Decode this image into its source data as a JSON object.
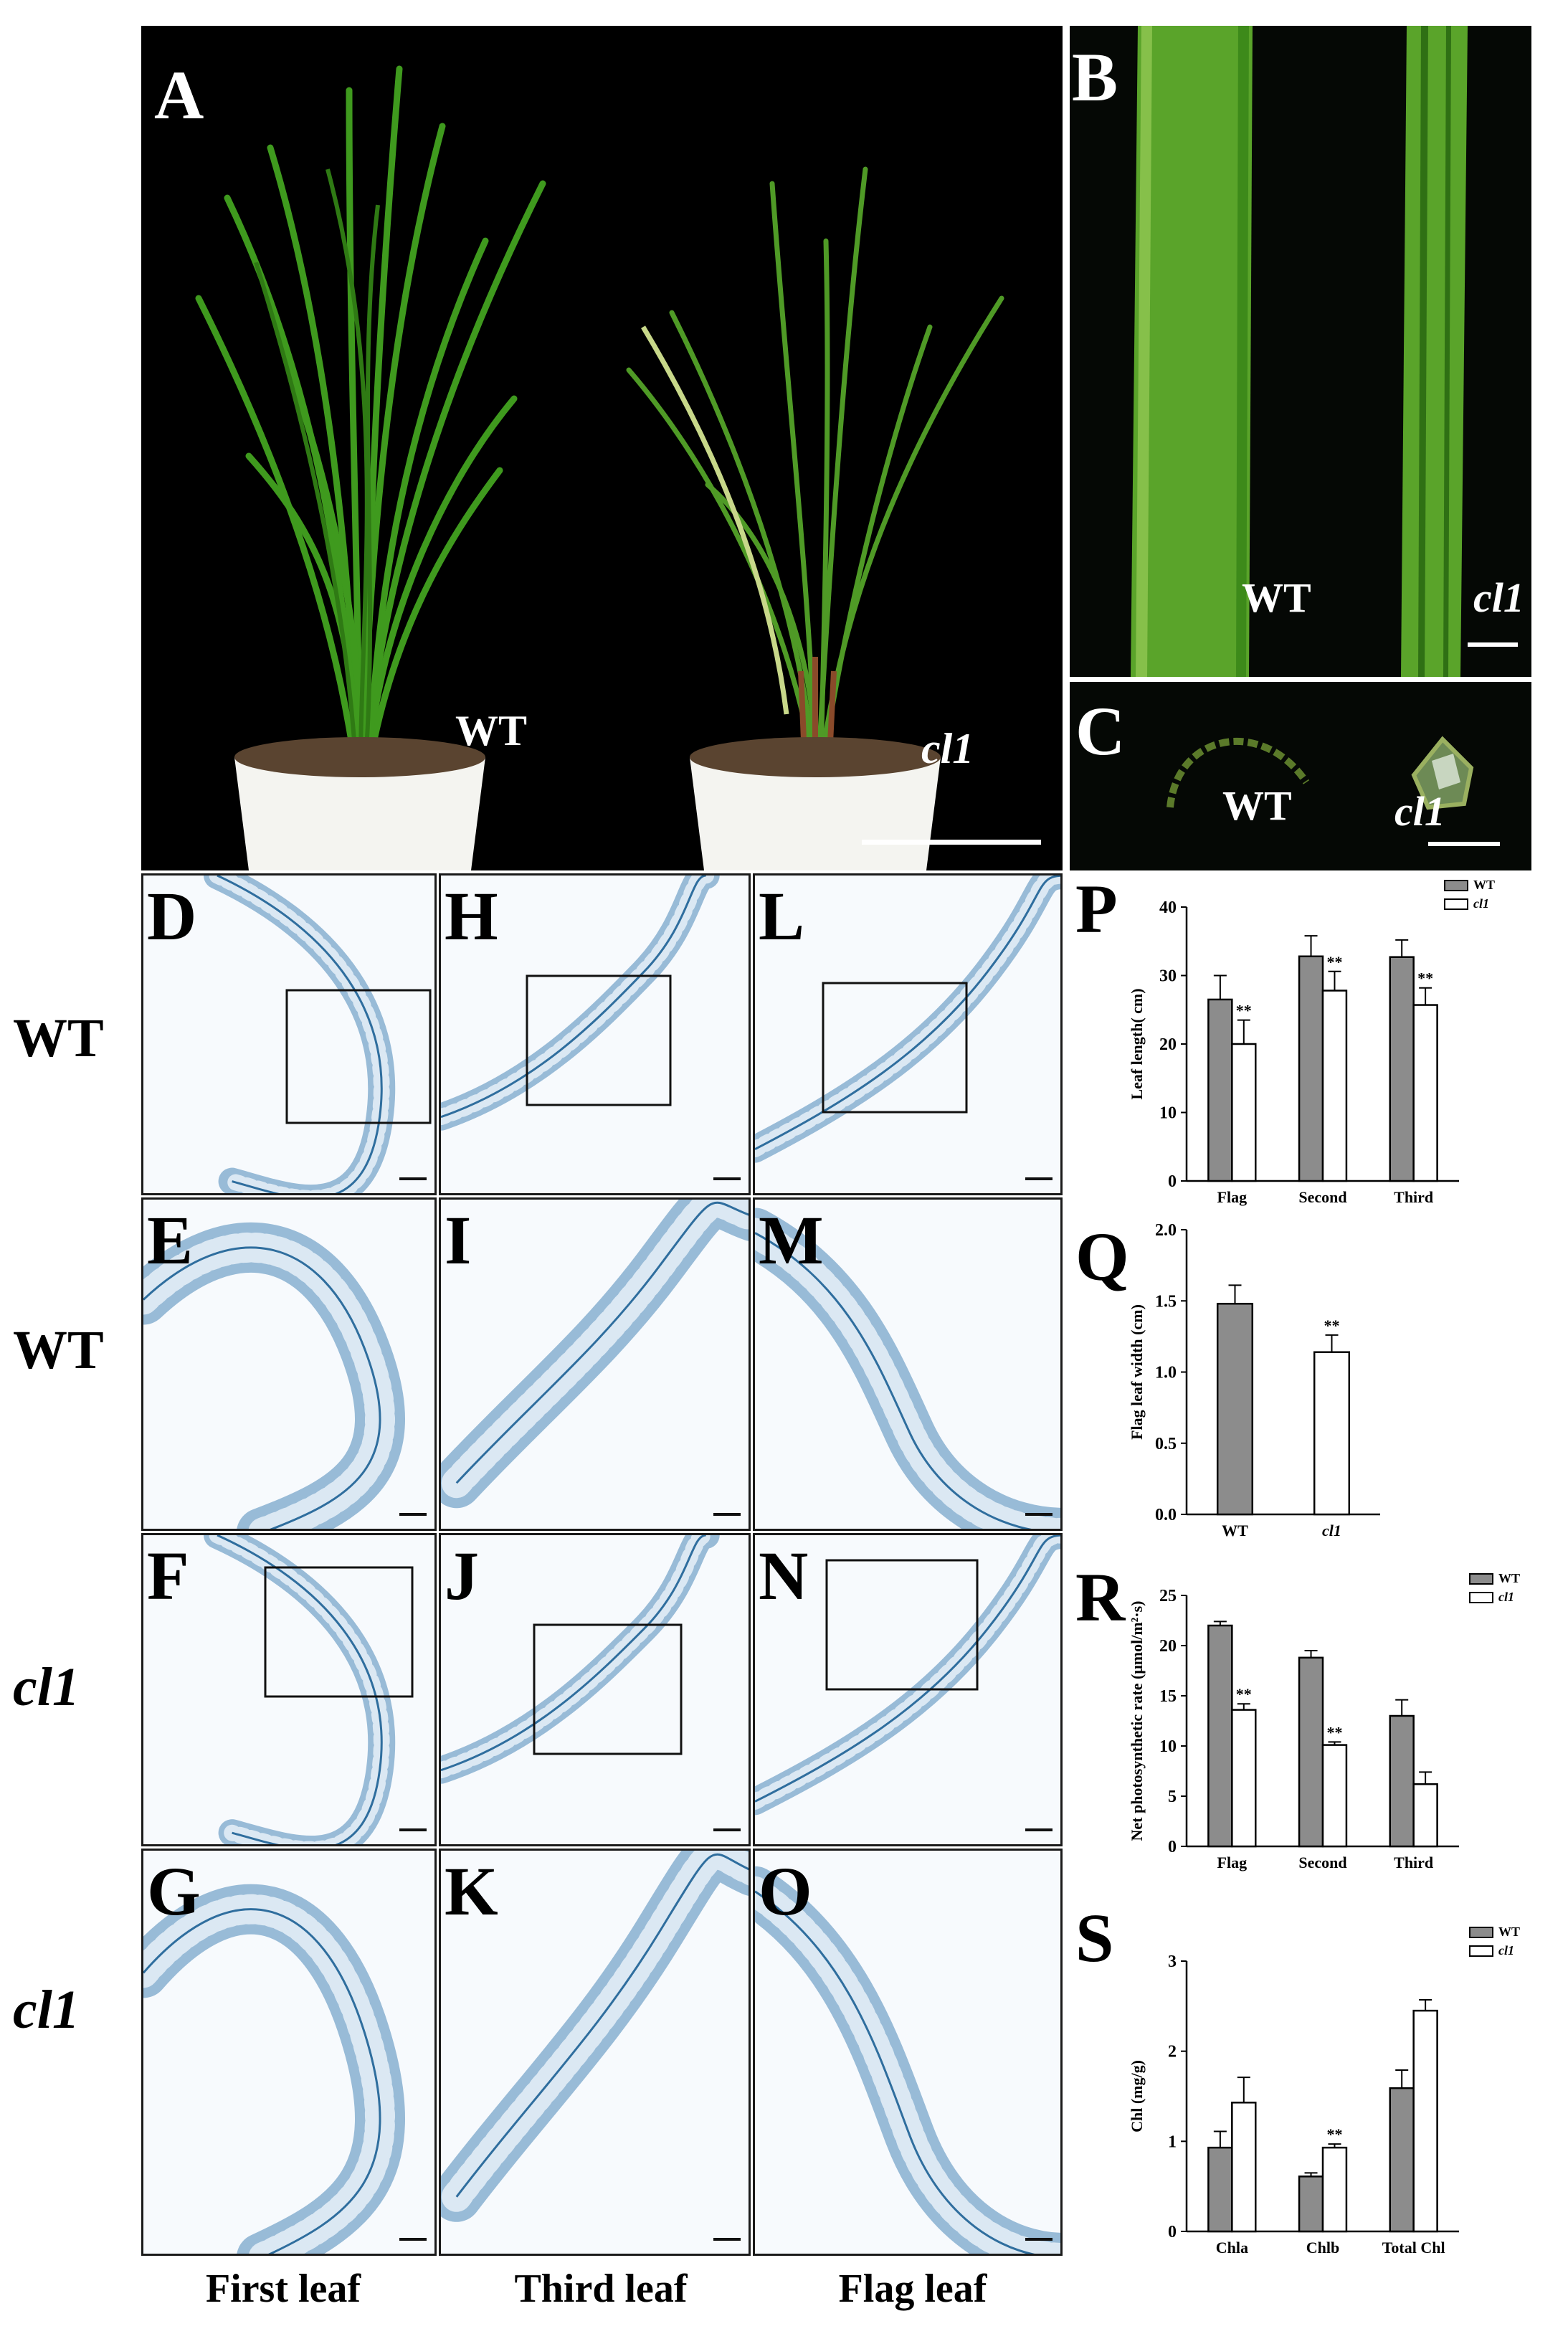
{
  "panels": {
    "A": {
      "letter": "A",
      "wt_label": "WT",
      "mut_label": "cl1"
    },
    "B": {
      "letter": "B",
      "wt_label": "WT",
      "mut_label": "cl1"
    },
    "C": {
      "letter": "C",
      "wt_label": "WT",
      "mut_label": "cl1"
    },
    "micro_letters": [
      "D",
      "E",
      "F",
      "G",
      "H",
      "I",
      "J",
      "K",
      "L",
      "M",
      "N",
      "O"
    ],
    "chart_letters": [
      "P",
      "Q",
      "R",
      "S"
    ]
  },
  "row_labels": [
    "WT",
    "WT",
    "cl1",
    "cl1"
  ],
  "col_labels": [
    "First leaf",
    "Third leaf",
    "Flag leaf"
  ],
  "colors": {
    "wt_bar": "#8c8c8c",
    "mut_bar": "#ffffff",
    "photo_bg": "#000000",
    "leaf_green": "#3f8f1c",
    "stain": "#4a86b8"
  },
  "chart_data": [
    {
      "panel": "P",
      "type": "bar",
      "categories": [
        "Flag",
        "Second",
        "Third"
      ],
      "series": [
        {
          "name": "WT",
          "values": [
            26.5,
            32.8,
            32.7
          ],
          "errors": [
            3.5,
            3.0,
            2.5
          ]
        },
        {
          "name": "cl1",
          "values": [
            20.0,
            27.8,
            25.7
          ],
          "errors": [
            3.5,
            2.8,
            2.5
          ]
        }
      ],
      "significance": [
        "**",
        "**",
        "**"
      ],
      "ylabel": "Leaf length( cm)",
      "ylim": [
        0,
        40
      ],
      "yticks": [
        0,
        10,
        20,
        30,
        40
      ],
      "legend": "top-right"
    },
    {
      "panel": "Q",
      "type": "bar",
      "categories": [
        "WT",
        "cl1"
      ],
      "values": [
        1.48,
        1.14
      ],
      "errors": [
        0.13,
        0.12
      ],
      "significance": [
        "",
        "**"
      ],
      "ylabel": "Flag leaf width (cm)",
      "ylim": [
        0,
        2.0
      ],
      "yticks": [
        "0.0",
        "0.5",
        "1.0",
        "1.5",
        "2.0"
      ]
    },
    {
      "panel": "R",
      "type": "bar",
      "categories": [
        "Flag",
        "Second",
        "Third"
      ],
      "series": [
        {
          "name": "WT",
          "values": [
            22.0,
            18.8,
            13.0
          ],
          "errors": [
            0.4,
            0.7,
            1.6
          ]
        },
        {
          "name": "cl1",
          "values": [
            13.6,
            10.1,
            6.2
          ],
          "errors": [
            0.6,
            0.3,
            1.2
          ]
        }
      ],
      "significance": [
        "**",
        "**",
        ""
      ],
      "ylabel": "Net photosynthetic rate (μmol/m²·s)",
      "ylim": [
        0,
        25
      ],
      "yticks": [
        0,
        5,
        10,
        15,
        20,
        25
      ],
      "legend": "top-right"
    },
    {
      "panel": "S",
      "type": "bar",
      "categories": [
        "Chla",
        "Chlb",
        "Total Chl"
      ],
      "series": [
        {
          "name": "WT",
          "values": [
            0.93,
            0.61,
            1.59
          ],
          "errors": [
            0.18,
            0.04,
            0.2
          ]
        },
        {
          "name": "cl1",
          "values": [
            1.43,
            0.93,
            2.45
          ],
          "errors": [
            0.28,
            0.04,
            0.12
          ]
        }
      ],
      "significance": [
        "",
        "**",
        ""
      ],
      "ylabel": "Chl (mg/g)",
      "ylim": [
        0,
        3
      ],
      "yticks": [
        0,
        1,
        2,
        3
      ],
      "legend": "top-right"
    }
  ]
}
